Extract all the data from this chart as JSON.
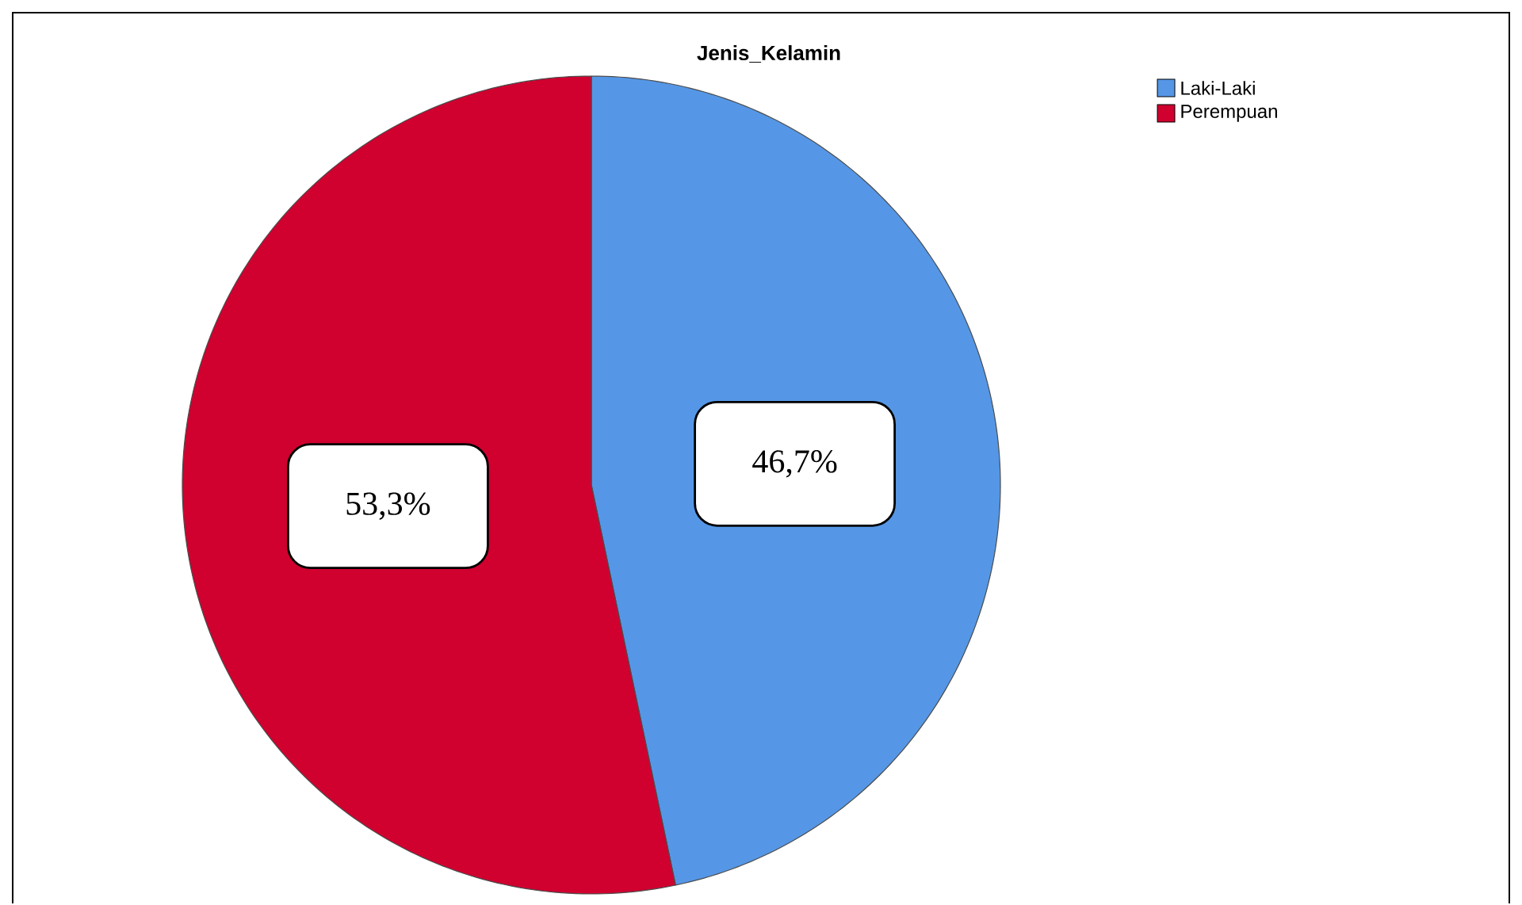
{
  "chart_data": {
    "type": "pie",
    "title": "Jenis_Kelamin",
    "categories": [
      "Laki-Laki",
      "Perempuan"
    ],
    "values": [
      46.7,
      53.3
    ],
    "colors": [
      "#5597e6",
      "#d0002f"
    ],
    "value_labels": [
      "46,7%",
      "53,3%"
    ],
    "legend": "top right"
  }
}
